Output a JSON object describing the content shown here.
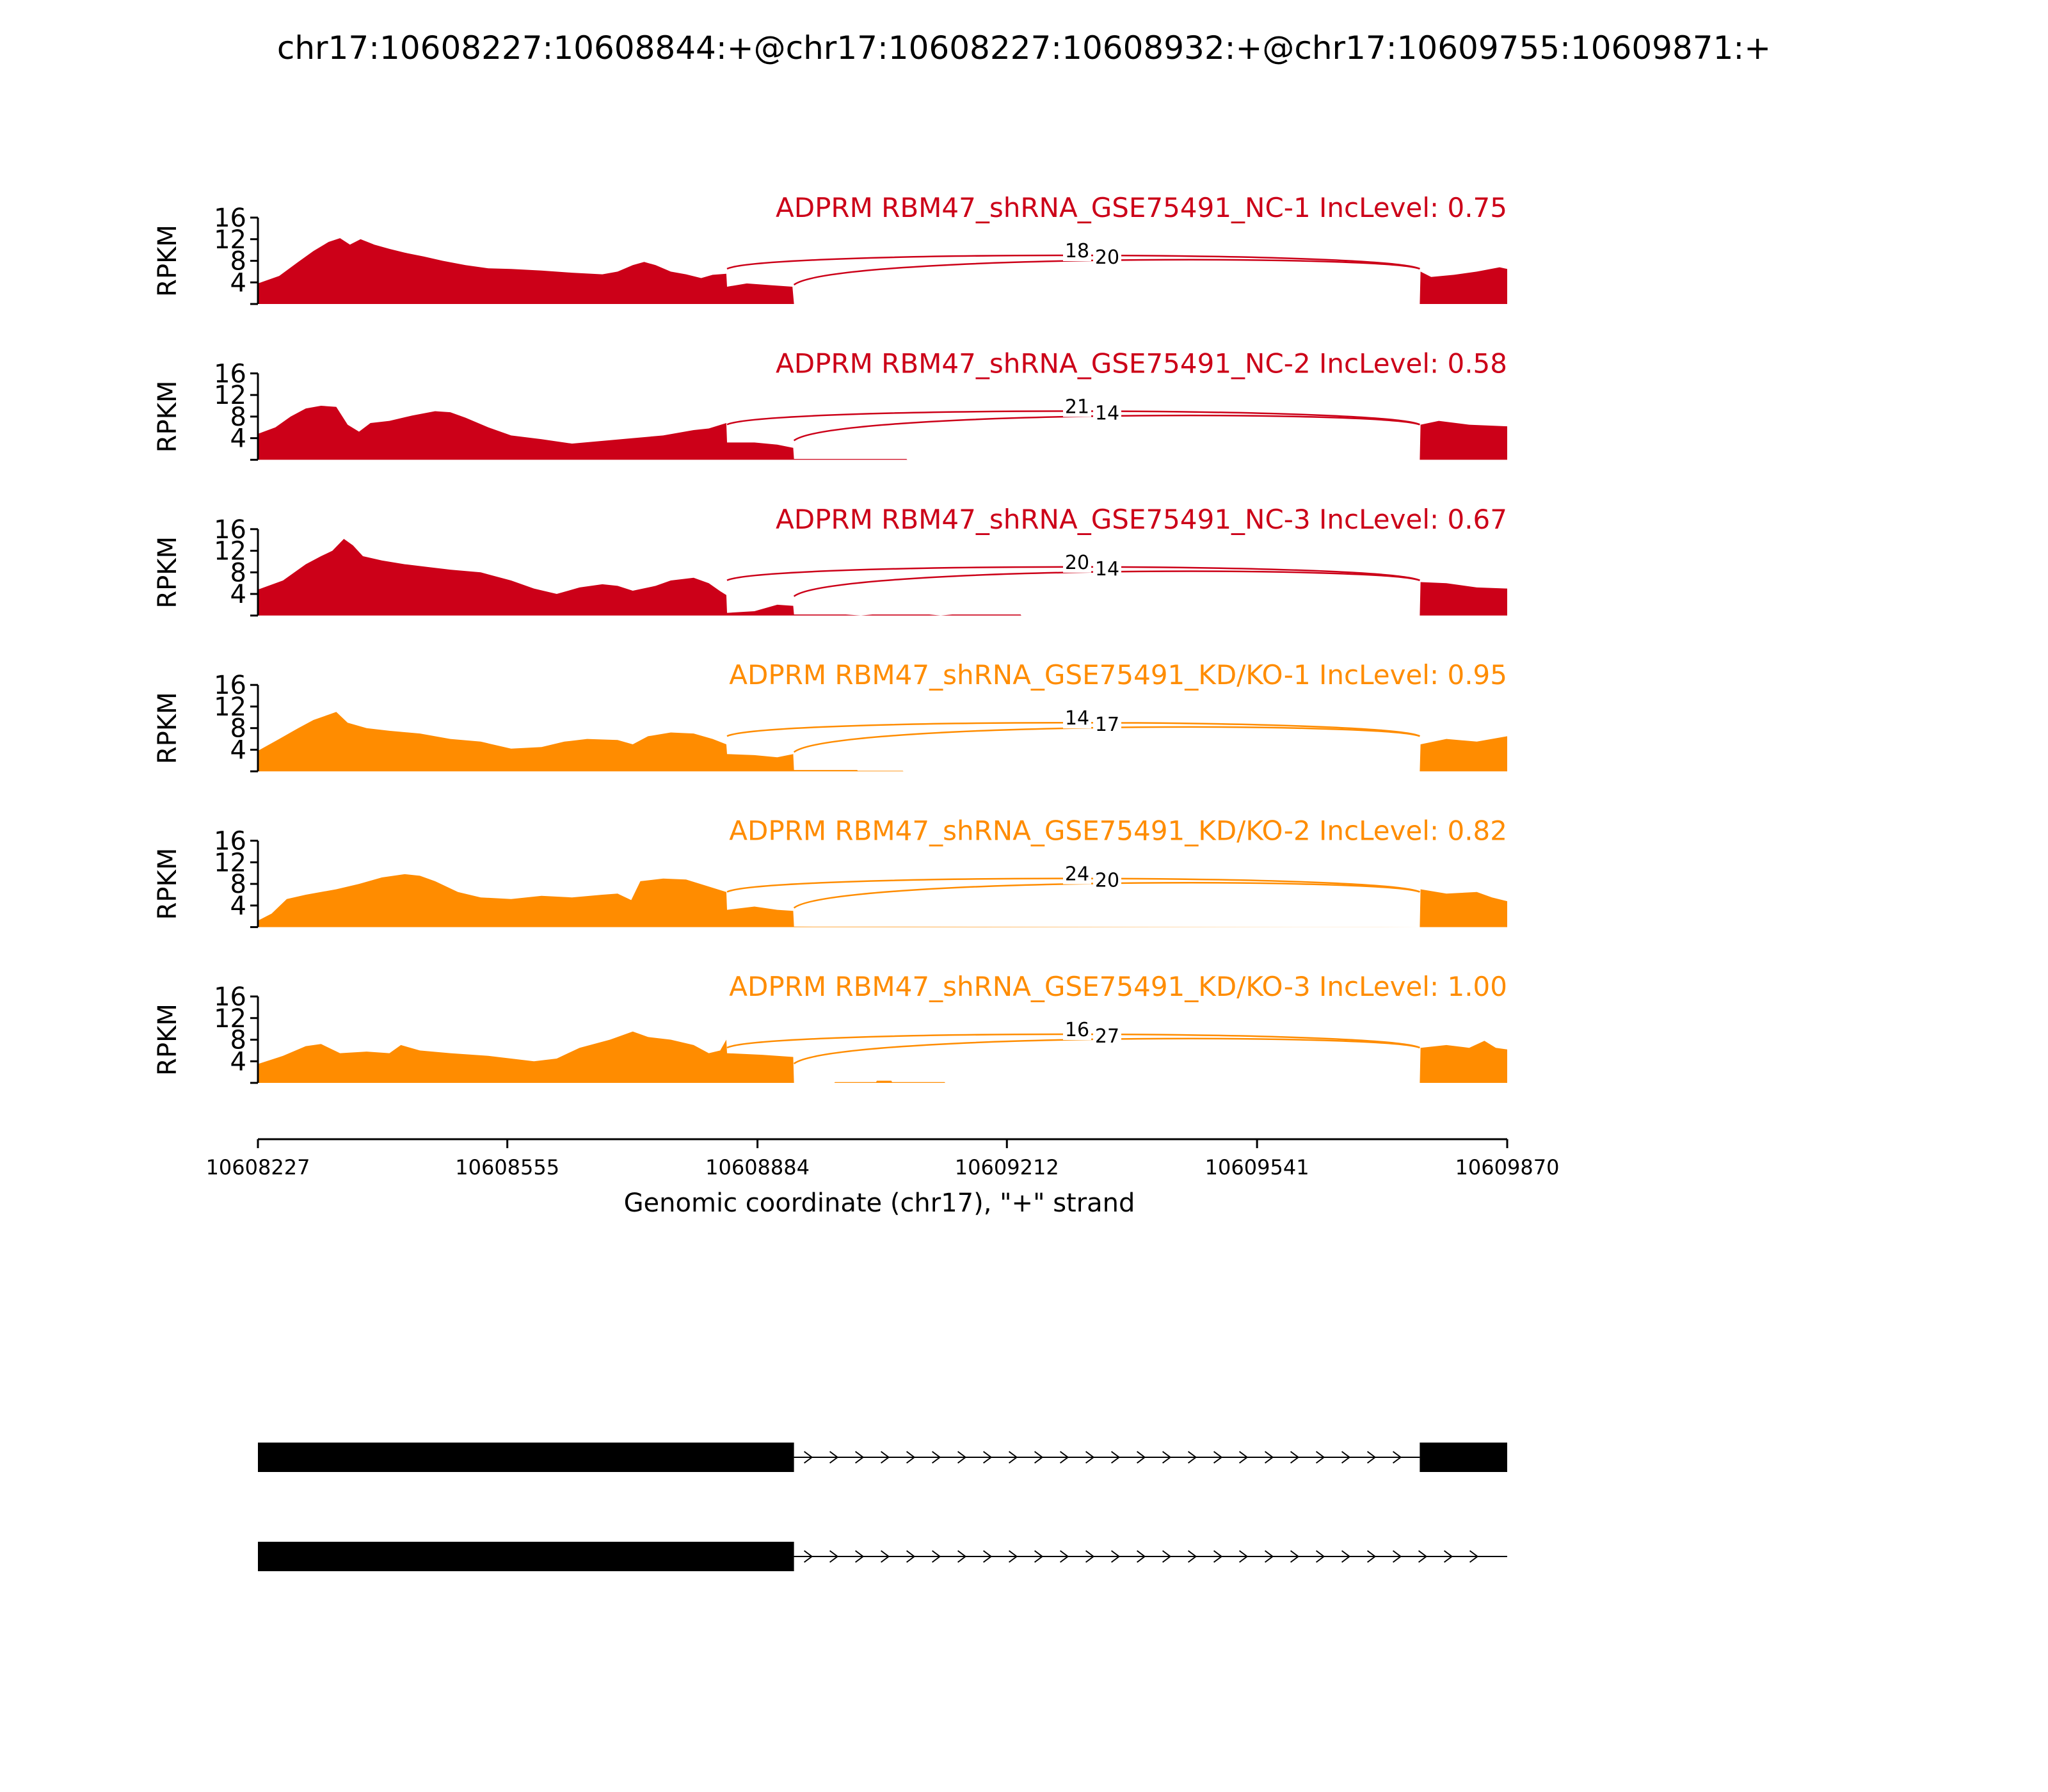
{
  "title": "chr17:10608227:10608844:+@chr17:10608227:10608932:+@chr17:10609755:10609871:+",
  "colors": {
    "group1": "#cc0018",
    "group2": "#ff8c00",
    "axis": "#000000",
    "gene": "#000000"
  },
  "chart_data": {
    "type": "area",
    "title": "chr17:10608227:10608844:+@chr17:10608227:10608932:+@chr17:10609755:10609871:+",
    "xlabel": "Genomic coordinate (chr17), \"+\" strand",
    "ylabel": "RPKM",
    "xlim": [
      10608227,
      10609870
    ],
    "xticks": [
      10608227,
      10608555,
      10608884,
      10609212,
      10609541,
      10609870
    ],
    "ylim": [
      0,
      16
    ],
    "yticks": [
      4,
      8,
      12,
      16
    ],
    "exons": [
      [
        10608227,
        10608844
      ],
      [
        10608844,
        10608932
      ],
      [
        10609755,
        10609871
      ]
    ],
    "junction_from": [
      10608844,
      10608932
    ],
    "junction_to": 10609755,
    "series": [
      {
        "name": "ADPRM RBM47_shRNA_GSE75491_NC-1 IncLevel: 0.75",
        "group": "group1",
        "junction_counts": [
          "18",
          "20"
        ],
        "coverage": [
          [
            10608227,
            3.8
          ],
          [
            10608255,
            5.2
          ],
          [
            10608280,
            7.8
          ],
          [
            10608300,
            9.8
          ],
          [
            10608320,
            11.5
          ],
          [
            10608335,
            12.2
          ],
          [
            10608348,
            11.0
          ],
          [
            10608362,
            12.0
          ],
          [
            10608380,
            11.0
          ],
          [
            10608400,
            10.2
          ],
          [
            10608420,
            9.5
          ],
          [
            10608445,
            8.8
          ],
          [
            10608470,
            8.0
          ],
          [
            10608500,
            7.2
          ],
          [
            10608530,
            6.6
          ],
          [
            10608560,
            6.5
          ],
          [
            10608600,
            6.2
          ],
          [
            10608640,
            5.8
          ],
          [
            10608680,
            5.5
          ],
          [
            10608700,
            6.0
          ],
          [
            10608720,
            7.2
          ],
          [
            10608735,
            7.8
          ],
          [
            10608750,
            7.2
          ],
          [
            10608770,
            6.0
          ],
          [
            10608790,
            5.5
          ],
          [
            10608810,
            4.8
          ],
          [
            10608825,
            5.4
          ],
          [
            10608843,
            5.6
          ],
          [
            10608844,
            3.2
          ],
          [
            10608870,
            3.8
          ],
          [
            10608900,
            3.5
          ],
          [
            10608930,
            3.2
          ],
          [
            10608932,
            0
          ],
          [
            10609755,
            0
          ],
          [
            10609756,
            6.0
          ],
          [
            10609770,
            5.0
          ],
          [
            10609800,
            5.4
          ],
          [
            10609830,
            6.0
          ],
          [
            10609860,
            6.8
          ],
          [
            10609870,
            6.5
          ]
        ]
      },
      {
        "name": "ADPRM RBM47_shRNA_GSE75491_NC-2 IncLevel: 0.58",
        "group": "group1",
        "junction_counts": [
          "21",
          "14"
        ],
        "coverage": [
          [
            10608227,
            4.8
          ],
          [
            10608250,
            6.0
          ],
          [
            10608270,
            8.0
          ],
          [
            10608290,
            9.5
          ],
          [
            10608310,
            10.0
          ],
          [
            10608330,
            9.8
          ],
          [
            10608345,
            6.5
          ],
          [
            10608360,
            5.2
          ],
          [
            10608375,
            6.8
          ],
          [
            10608400,
            7.2
          ],
          [
            10608430,
            8.2
          ],
          [
            10608460,
            9.0
          ],
          [
            10608480,
            8.8
          ],
          [
            10608500,
            7.8
          ],
          [
            10608530,
            6.0
          ],
          [
            10608560,
            4.5
          ],
          [
            10608600,
            3.8
          ],
          [
            10608640,
            3.0
          ],
          [
            10608680,
            3.5
          ],
          [
            10608720,
            4.0
          ],
          [
            10608760,
            4.5
          ],
          [
            10608800,
            5.5
          ],
          [
            10608820,
            5.8
          ],
          [
            10608843,
            6.8
          ],
          [
            10608844,
            3.2
          ],
          [
            10608880,
            3.2
          ],
          [
            10608910,
            2.8
          ],
          [
            10608931,
            2.2
          ],
          [
            10608932,
            0.15
          ],
          [
            10609080,
            0.15
          ],
          [
            10609081,
            0
          ],
          [
            10609755,
            0
          ],
          [
            10609756,
            6.5
          ],
          [
            10609780,
            7.2
          ],
          [
            10609820,
            6.5
          ],
          [
            10609870,
            6.2
          ]
        ]
      },
      {
        "name": "ADPRM RBM47_shRNA_GSE75491_NC-3 IncLevel: 0.67",
        "group": "group1",
        "junction_counts": [
          "20",
          "14"
        ],
        "coverage": [
          [
            10608227,
            4.8
          ],
          [
            10608260,
            6.5
          ],
          [
            10608290,
            9.5
          ],
          [
            10608310,
            11.0
          ],
          [
            10608325,
            12.0
          ],
          [
            10608340,
            14.2
          ],
          [
            10608352,
            13.0
          ],
          [
            10608365,
            11.0
          ],
          [
            10608390,
            10.2
          ],
          [
            10608420,
            9.5
          ],
          [
            10608450,
            9.0
          ],
          [
            10608480,
            8.5
          ],
          [
            10608520,
            8.0
          ],
          [
            10608560,
            6.5
          ],
          [
            10608590,
            5.0
          ],
          [
            10608620,
            4.0
          ],
          [
            10608650,
            5.2
          ],
          [
            10608680,
            5.8
          ],
          [
            10608700,
            5.5
          ],
          [
            10608720,
            4.6
          ],
          [
            10608750,
            5.5
          ],
          [
            10608770,
            6.5
          ],
          [
            10608800,
            7.0
          ],
          [
            10608820,
            6.0
          ],
          [
            10608835,
            4.5
          ],
          [
            10608843,
            3.8
          ],
          [
            10608844,
            0.5
          ],
          [
            10608880,
            0.8
          ],
          [
            10608910,
            2.0
          ],
          [
            10608931,
            1.8
          ],
          [
            10608932,
            0.2
          ],
          [
            10609000,
            0.2
          ],
          [
            10609020,
            0
          ],
          [
            10609035,
            0.2
          ],
          [
            10609110,
            0.2
          ],
          [
            10609125,
            0
          ],
          [
            10609140,
            0.2
          ],
          [
            10609230,
            0.2
          ],
          [
            10609231,
            0
          ],
          [
            10609755,
            0
          ],
          [
            10609756,
            6.2
          ],
          [
            10609790,
            6.0
          ],
          [
            10609830,
            5.2
          ],
          [
            10609870,
            5.0
          ]
        ]
      },
      {
        "name": "ADPRM RBM47_shRNA_GSE75491_KD/KO-1 IncLevel: 0.95",
        "group": "group2",
        "junction_counts": [
          "14",
          "17"
        ],
        "coverage": [
          [
            10608227,
            3.8
          ],
          [
            10608255,
            6.0
          ],
          [
            10608280,
            8.0
          ],
          [
            10608300,
            9.5
          ],
          [
            10608320,
            10.5
          ],
          [
            10608330,
            11.0
          ],
          [
            10608345,
            9.0
          ],
          [
            10608370,
            8.0
          ],
          [
            10608400,
            7.5
          ],
          [
            10608440,
            7.0
          ],
          [
            10608480,
            6.0
          ],
          [
            10608520,
            5.5
          ],
          [
            10608560,
            4.2
          ],
          [
            10608600,
            4.5
          ],
          [
            10608630,
            5.5
          ],
          [
            10608660,
            6.0
          ],
          [
            10608700,
            5.8
          ],
          [
            10608720,
            5.0
          ],
          [
            10608740,
            6.5
          ],
          [
            10608770,
            7.2
          ],
          [
            10608800,
            7.0
          ],
          [
            10608825,
            6.0
          ],
          [
            10608843,
            5.0
          ],
          [
            10608844,
            3.2
          ],
          [
            10608880,
            3.0
          ],
          [
            10608910,
            2.6
          ],
          [
            10608931,
            3.2
          ],
          [
            10608932,
            0.25
          ],
          [
            10609015,
            0.25
          ],
          [
            10609016,
            0.1
          ],
          [
            10609075,
            0.1
          ],
          [
            10609076,
            0
          ],
          [
            10609755,
            0
          ],
          [
            10609756,
            5.0
          ],
          [
            10609790,
            6.0
          ],
          [
            10609830,
            5.5
          ],
          [
            10609870,
            6.5
          ]
        ]
      },
      {
        "name": "ADPRM RBM47_shRNA_GSE75491_KD/KO-2 IncLevel: 0.82",
        "group": "group2",
        "junction_counts": [
          "24",
          "20"
        ],
        "coverage": [
          [
            10608227,
            1.2
          ],
          [
            10608245,
            2.5
          ],
          [
            10608265,
            5.2
          ],
          [
            10608290,
            6.0
          ],
          [
            10608330,
            7.0
          ],
          [
            10608360,
            8.0
          ],
          [
            10608390,
            9.2
          ],
          [
            10608420,
            9.8
          ],
          [
            10608440,
            9.5
          ],
          [
            10608460,
            8.5
          ],
          [
            10608490,
            6.5
          ],
          [
            10608520,
            5.5
          ],
          [
            10608560,
            5.2
          ],
          [
            10608600,
            5.8
          ],
          [
            10608640,
            5.5
          ],
          [
            10608680,
            6.0
          ],
          [
            10608700,
            6.2
          ],
          [
            10608718,
            5.0
          ],
          [
            10608730,
            8.5
          ],
          [
            10608760,
            9.0
          ],
          [
            10608790,
            8.8
          ],
          [
            10608820,
            7.5
          ],
          [
            10608843,
            6.5
          ],
          [
            10608844,
            3.2
          ],
          [
            10608880,
            3.8
          ],
          [
            10608910,
            3.2
          ],
          [
            10608931,
            3.0
          ],
          [
            10608932,
            0.1
          ],
          [
            10609755,
            0
          ],
          [
            10609756,
            7.0
          ],
          [
            10609790,
            6.2
          ],
          [
            10609830,
            6.5
          ],
          [
            10609850,
            5.5
          ],
          [
            10609870,
            4.8
          ]
        ]
      },
      {
        "name": "ADPRM RBM47_shRNA_GSE75491_KD/KO-3 IncLevel: 1.00",
        "group": "group2",
        "junction_counts": [
          "16",
          "27"
        ],
        "coverage": [
          [
            10608227,
            3.5
          ],
          [
            10608260,
            5.0
          ],
          [
            10608290,
            6.8
          ],
          [
            10608310,
            7.2
          ],
          [
            10608335,
            5.5
          ],
          [
            10608370,
            5.8
          ],
          [
            10608400,
            5.5
          ],
          [
            10608415,
            7.0
          ],
          [
            10608440,
            6.0
          ],
          [
            10608480,
            5.5
          ],
          [
            10608530,
            5.0
          ],
          [
            10608560,
            4.5
          ],
          [
            10608590,
            4.0
          ],
          [
            10608620,
            4.5
          ],
          [
            10608650,
            6.5
          ],
          [
            10608690,
            8.0
          ],
          [
            10608720,
            9.5
          ],
          [
            10608740,
            8.5
          ],
          [
            10608770,
            8.0
          ],
          [
            10608800,
            7.0
          ],
          [
            10608820,
            5.5
          ],
          [
            10608835,
            6.0
          ],
          [
            10608843,
            8.0
          ],
          [
            10608844,
            5.5
          ],
          [
            10608890,
            5.2
          ],
          [
            10608931,
            4.8
          ],
          [
            10608932,
            0
          ],
          [
            10608985,
            0
          ],
          [
            10608986,
            0.15
          ],
          [
            10609040,
            0.15
          ],
          [
            10609041,
            0.4
          ],
          [
            10609060,
            0.4
          ],
          [
            10609061,
            0.15
          ],
          [
            10609130,
            0.15
          ],
          [
            10609131,
            0
          ],
          [
            10609755,
            0
          ],
          [
            10609756,
            6.5
          ],
          [
            10609790,
            7.0
          ],
          [
            10609820,
            6.5
          ],
          [
            10609840,
            7.8
          ],
          [
            10609855,
            6.5
          ],
          [
            10609870,
            6.2
          ]
        ]
      }
    ],
    "transcripts": [
      {
        "exons": [
          [
            10608227,
            10608932
          ],
          [
            10609755,
            10609870
          ]
        ],
        "strand": "+"
      },
      {
        "exons": [
          [
            10608227,
            10608932
          ]
        ],
        "strand": "+"
      }
    ]
  }
}
